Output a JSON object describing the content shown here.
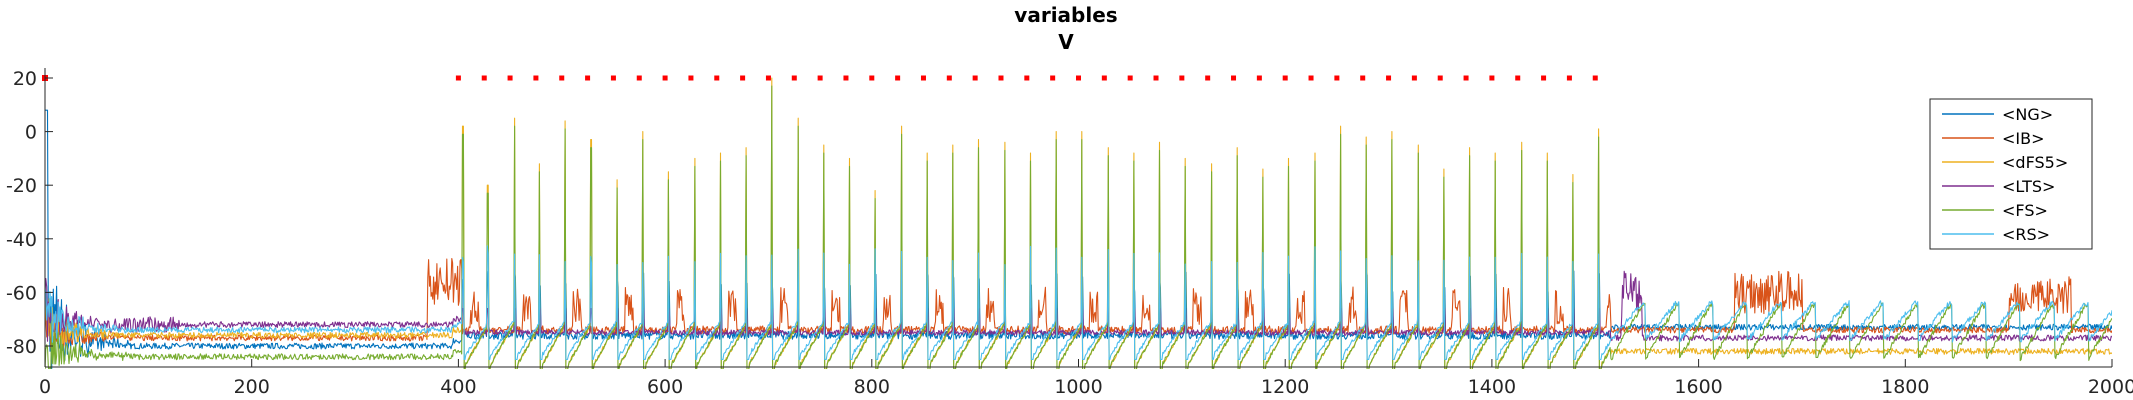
{
  "chart_data": {
    "type": "line",
    "title": "variables",
    "subtitle": "V",
    "xlabel": "",
    "ylabel": "",
    "xlim": [
      0,
      2000
    ],
    "ylim": [
      -91,
      20
    ],
    "x_ticks": [
      0,
      200,
      400,
      600,
      800,
      1000,
      1200,
      1400,
      1600,
      1800,
      2000
    ],
    "y_ticks": [
      -80,
      -60,
      -40,
      -20,
      0,
      20
    ],
    "grid": false,
    "legend_position": "top-right",
    "spike_times": [
      404,
      428,
      454,
      478,
      503,
      528,
      553,
      578,
      603,
      628,
      653,
      678,
      703,
      728,
      753,
      778,
      803,
      828,
      853,
      878,
      903,
      928,
      953,
      978,
      1003,
      1028,
      1053,
      1078,
      1103,
      1128,
      1153,
      1178,
      1203,
      1228,
      1253,
      1278,
      1303,
      1328,
      1353,
      1378,
      1403,
      1428,
      1453,
      1478,
      1503
    ],
    "spike_peaks_mV": [
      2,
      -20,
      5,
      -12,
      4,
      -3,
      -18,
      0,
      -15,
      -10,
      -8,
      -6,
      20,
      5,
      -5,
      -10,
      -22,
      2,
      -8,
      -5,
      -3,
      -4,
      -8,
      0,
      0,
      -6,
      -8,
      -4,
      -10,
      -12,
      -6,
      -14,
      -10,
      -8,
      2,
      -2,
      0,
      -5,
      -14,
      -6,
      -8,
      -4,
      -8,
      -16,
      1
    ],
    "series": [
      {
        "name": "<NG>",
        "color": "#0072bd",
        "rest_mV": -80,
        "late_rest_mV": -73
      },
      {
        "name": "<IB>",
        "color": "#d95319",
        "rest_mV": -77,
        "late_rest_mV": -74
      },
      {
        "name": "<dFS5>",
        "color": "#edb120",
        "rest_mV": -76,
        "late_rest_mV": -82
      },
      {
        "name": "<LTS>",
        "color": "#7e2f8e",
        "rest_mV": -72,
        "late_rest_mV": -77
      },
      {
        "name": "<FS>",
        "color": "#77ac30",
        "rest_mV": -84,
        "late_rest_mV": -82
      },
      {
        "name": "<RS>",
        "color": "#4dbeee",
        "rest_mV": -74,
        "late_rest_mV": -76
      }
    ],
    "stimulus_marker": {
      "y": 20,
      "x_start": 400,
      "x_end": 1510,
      "spacing": 25,
      "color": "#ff0000"
    }
  }
}
